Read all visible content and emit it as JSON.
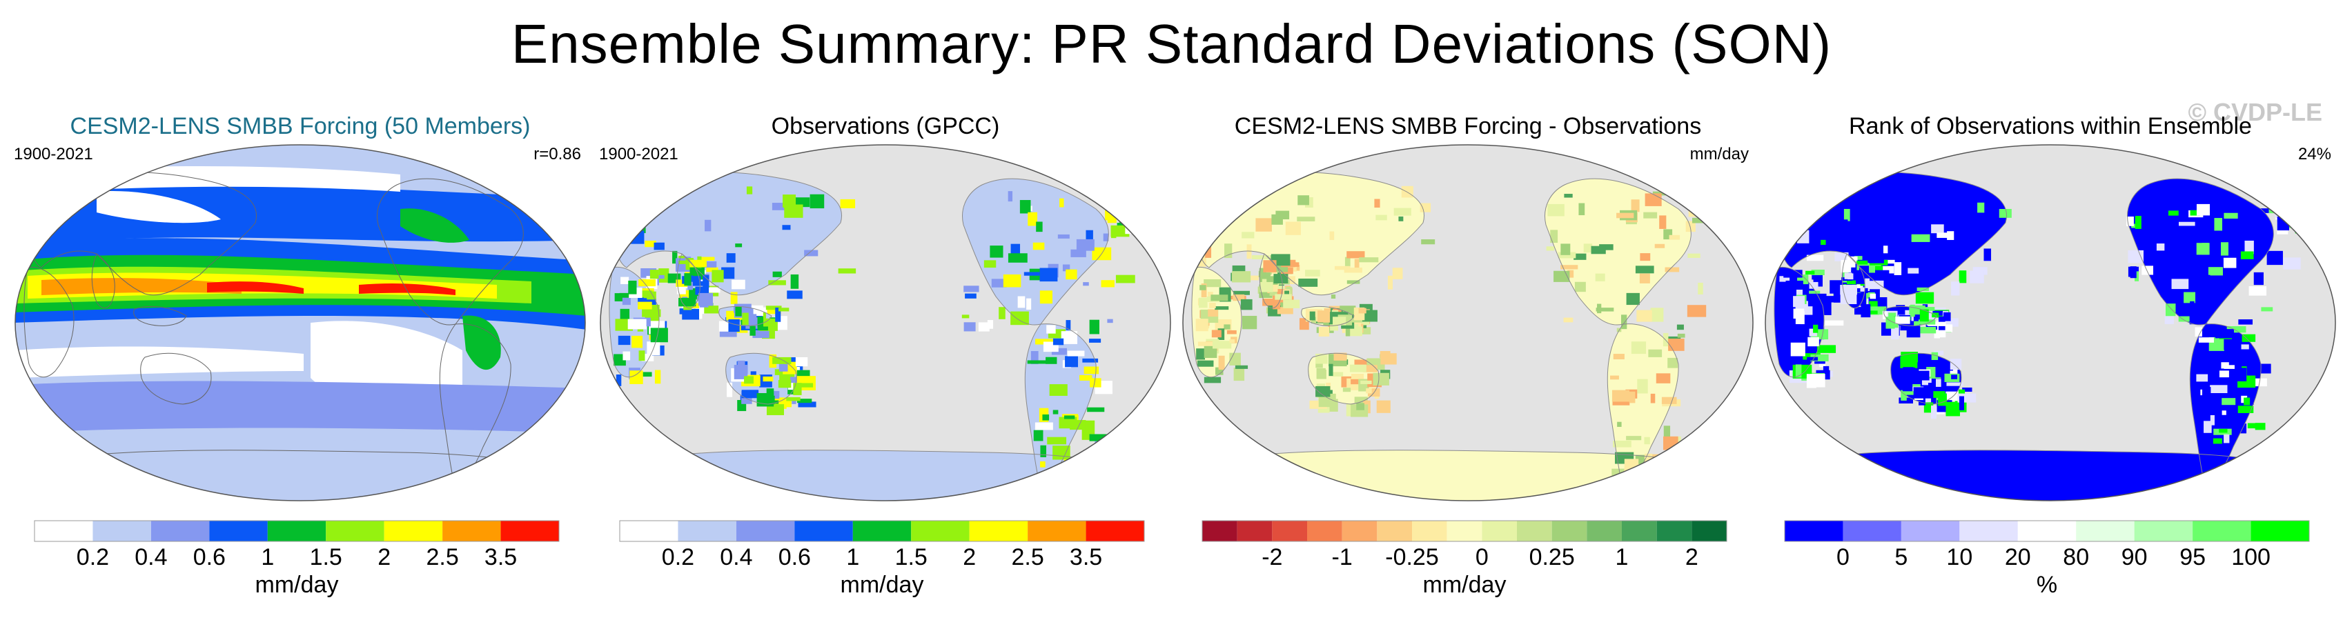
{
  "title": "Ensemble Summary: PR Standard Deviations (SON)",
  "watermark": "© CVDP-LE",
  "panels": [
    {
      "title": "CESM2-LENS SMBB Forcing (50 Members)",
      "left_label": "1900-2021",
      "right_label": "r=0.86",
      "map_type": "model",
      "colorbar": {
        "colors": [
          "#ffffff",
          "#bccdf3",
          "#8598f0",
          "#0a58f6",
          "#04bd2c",
          "#95f210",
          "#ffff00",
          "#ff9b00",
          "#ff1500"
        ],
        "tick_labels": [
          "0.2",
          "0.4",
          "0.6",
          "1",
          "1.5",
          "2",
          "2.5",
          "3.5"
        ],
        "label": "mm/day"
      }
    },
    {
      "title": "Observations (GPCC)",
      "left_label": "1900-2021",
      "right_label": "",
      "map_type": "obs",
      "colorbar": {
        "colors": [
          "#ffffff",
          "#bccdf3",
          "#8598f0",
          "#0a58f6",
          "#04bd2c",
          "#95f210",
          "#ffff00",
          "#ff9b00",
          "#ff1500"
        ],
        "tick_labels": [
          "0.2",
          "0.4",
          "0.6",
          "1",
          "1.5",
          "2",
          "2.5",
          "3.5"
        ],
        "label": "mm/day"
      }
    },
    {
      "title": "CESM2-LENS SMBB Forcing - Observations",
      "left_label": "",
      "right_label": "mm/day",
      "map_type": "diff",
      "colorbar": {
        "colors": [
          "#a2102b",
          "#c62a30",
          "#e24e3c",
          "#f5804e",
          "#fbaa68",
          "#fcd086",
          "#fdeca3",
          "#fbfbc2",
          "#e6f3a6",
          "#c7e38f",
          "#a1d179",
          "#78bd6a",
          "#4aa55b",
          "#1f8a4a",
          "#086c36"
        ],
        "tick_labels": [
          "-2",
          "-1",
          "-0.25",
          "0",
          "0.25",
          "1",
          "2"
        ],
        "label": "mm/day"
      }
    },
    {
      "title": "Rank of Observations within Ensemble",
      "left_label": "",
      "right_label": "24%",
      "map_type": "rank",
      "colorbar": {
        "colors": [
          "#0000ff",
          "#6a6aff",
          "#b0b0ff",
          "#e3e3ff",
          "#ffffff",
          "#e3ffe3",
          "#b0ffb0",
          "#6aff6a",
          "#00ff00"
        ],
        "tick_labels": [
          "0",
          "5",
          "10",
          "20",
          "80",
          "90",
          "95",
          "100"
        ],
        "label": "%"
      }
    }
  ]
}
